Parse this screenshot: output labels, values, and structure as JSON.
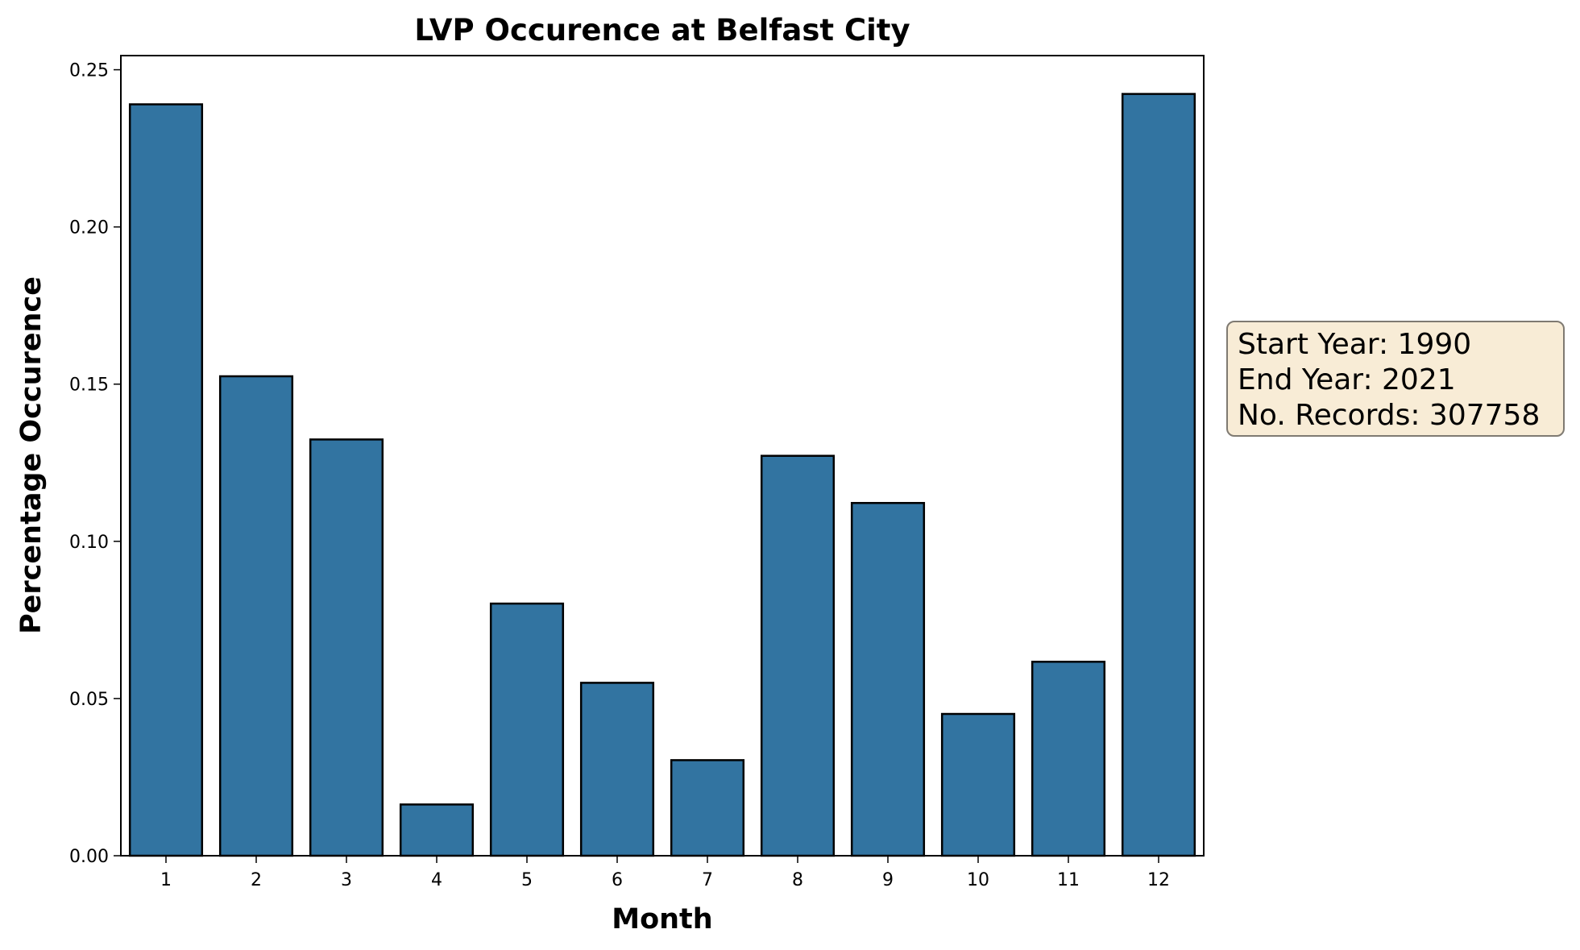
{
  "chart_data": {
    "type": "bar",
    "title": "LVP Occurence at Belfast City",
    "xlabel": "Month",
    "ylabel": "Percentage Occurence",
    "categories": [
      "1",
      "2",
      "3",
      "4",
      "5",
      "6",
      "7",
      "8",
      "9",
      "10",
      "11",
      "12"
    ],
    "values": [
      0.239,
      0.1525,
      0.1324,
      0.0163,
      0.0802,
      0.055,
      0.0304,
      0.1272,
      0.1122,
      0.0451,
      0.0617,
      0.2423
    ],
    "ylim": [
      0,
      0.2545
    ],
    "yticks": [
      "0.00",
      "0.05",
      "0.10",
      "0.15",
      "0.20",
      "0.25"
    ],
    "ytick_values": [
      0,
      0.05,
      0.1,
      0.15,
      0.2,
      0.25
    ],
    "grid": false,
    "bar_color": "#3274a1",
    "annotation": {
      "start_year": "Start Year: 1990",
      "end_year": "End Year: 2021",
      "records": "No. Records: 307758"
    }
  }
}
